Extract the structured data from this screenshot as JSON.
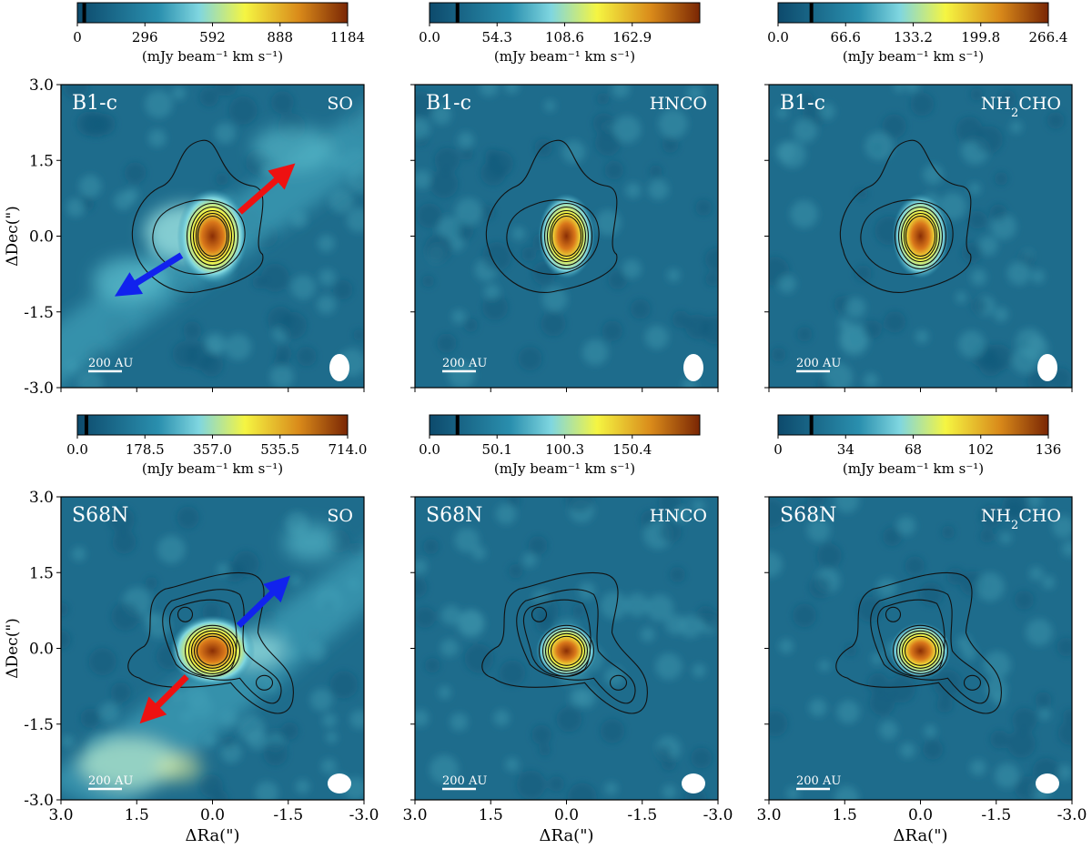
{
  "chart_data": {
    "type": "heatmap",
    "axis_ranges": {
      "ra": [
        3.0,
        -3.0
      ],
      "dec": [
        -3.0,
        3.0
      ],
      "ra_ticks": [
        "3.0",
        "1.5",
        "0.0",
        "-1.5",
        "-3.0"
      ],
      "dec_ticks": [
        "3.0",
        "1.5",
        "0.0",
        "-1.5",
        "-3.0"
      ]
    },
    "xlabel": "ΔRa(\")",
    "ylabel": "ΔDec(\")",
    "colorbar_unit_label": "(mJy beam⁻¹ km s⁻¹)",
    "scale_bar_label": "200 AU",
    "colors": {
      "cmap_stops": [
        "#0d4a6c",
        "#1f7c9a",
        "#7fd6e0",
        "#f5f542",
        "#d98a1a",
        "#8a2e05"
      ],
      "outflow_red": "#ee1111",
      "outflow_blue": "#1122ee"
    },
    "rows": [
      {
        "source": "B1-c",
        "panels": [
          {
            "molecule": "SO",
            "colorbar_ticks": [
              "0",
              "296",
              "592",
              "888",
              "1184"
            ],
            "colorbar_max": 1184,
            "outflow": {
              "red_to": [
                -1.65,
                1.45
              ],
              "blue_to": [
                1.95,
                -1.2
              ]
            }
          },
          {
            "molecule": "HNCO",
            "colorbar_ticks": [
              "0.0",
              "54.3",
              "108.6",
              "162.9"
            ],
            "colorbar_max": 217.2
          },
          {
            "molecule": "NH2CHO",
            "colorbar_ticks": [
              "0.0",
              "66.6",
              "133.2",
              "199.8",
              "266.4"
            ],
            "colorbar_max": 266.4
          }
        ]
      },
      {
        "source": "S68N",
        "panels": [
          {
            "molecule": "SO",
            "colorbar_ticks": [
              "0.0",
              "178.5",
              "357.0",
              "535.5",
              "714.0"
            ],
            "colorbar_max": 714.0,
            "outflow": {
              "blue_to": [
                -1.55,
                1.45
              ],
              "red_to": [
                1.45,
                -1.5
              ]
            }
          },
          {
            "molecule": "HNCO",
            "colorbar_ticks": [
              "0.0",
              "50.1",
              "100.3",
              "150.4"
            ],
            "colorbar_max": 200.5
          },
          {
            "molecule": "NH2CHO",
            "colorbar_ticks": [
              "0",
              "34",
              "68",
              "102",
              "136"
            ],
            "colorbar_max": 136
          }
        ]
      }
    ]
  }
}
